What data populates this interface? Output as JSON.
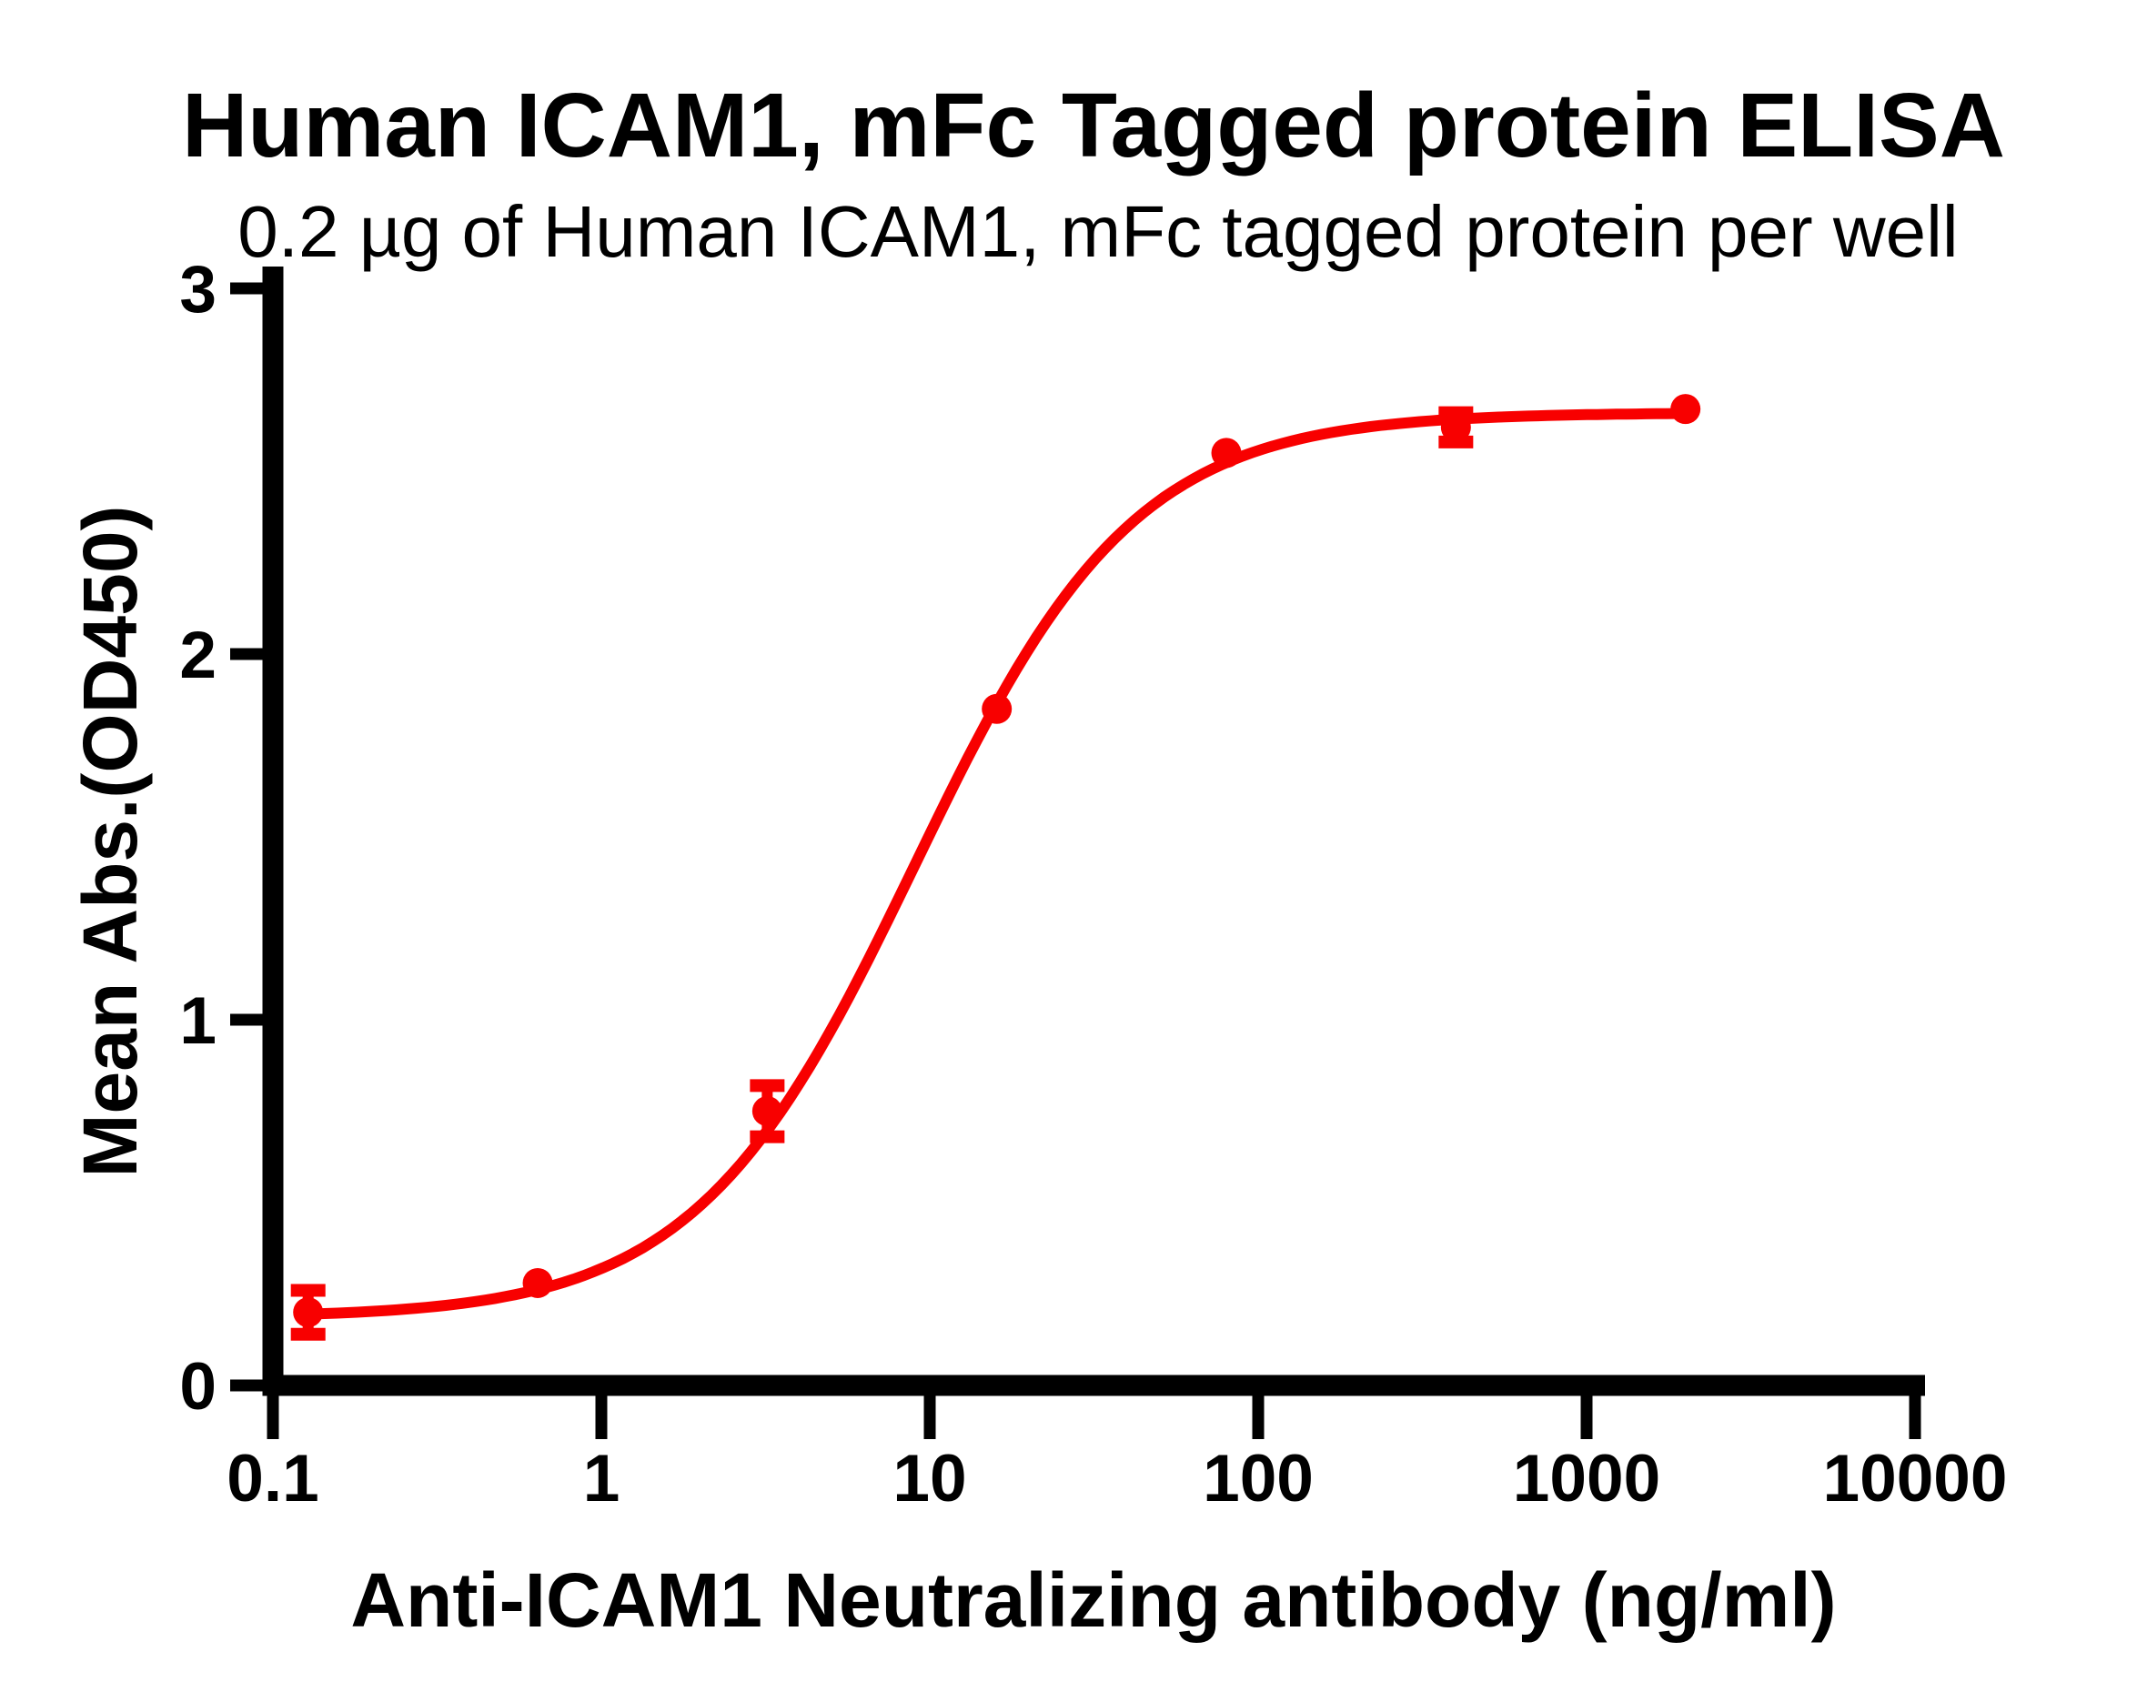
{
  "chart_data": {
    "type": "scatter",
    "title": "Human ICAM1, mFc Tagged protein ELISA",
    "subtitle": "0.2 µg of Human ICAM1, mFc tagged protein per well",
    "xlabel": "Anti-ICAM1 Neutralizing antibody (ng/ml)",
    "ylabel": "Mean Abs.(OD450)",
    "x_scale": "log10",
    "xlim": [
      0.1,
      10000
    ],
    "ylim": [
      0,
      3
    ],
    "x_ticks": [
      0.1,
      1,
      10,
      100,
      1000,
      10000
    ],
    "x_tick_labels": [
      "0.1",
      "1",
      "10",
      "100",
      "1000",
      "10000"
    ],
    "y_ticks": [
      0,
      1,
      2,
      3
    ],
    "y_tick_labels": [
      "0",
      "1",
      "2",
      "3"
    ],
    "grid": false,
    "legend": "none",
    "axis_color": "#000000",
    "series": [
      {
        "color": "#f80000",
        "marker": "circle",
        "points": [
          {
            "x": 0.128,
            "y": 0.2,
            "sd": 0.06
          },
          {
            "x": 0.64,
            "y": 0.28,
            "sd": 0
          },
          {
            "x": 3.2,
            "y": 0.75,
            "sd": 0.07
          },
          {
            "x": 16,
            "y": 1.85,
            "sd": 0
          },
          {
            "x": 80,
            "y": 2.55,
            "sd": 0
          },
          {
            "x": 400,
            "y": 2.62,
            "sd": 0.04
          },
          {
            "x": 2000,
            "y": 2.67,
            "sd": 0
          }
        ],
        "fit_curve": {
          "model": "4PL",
          "bottom": 0.185,
          "top": 2.66,
          "ec50": 9,
          "hill": 1.3,
          "x_start": 0.128,
          "x_end": 2000
        }
      }
    ]
  }
}
